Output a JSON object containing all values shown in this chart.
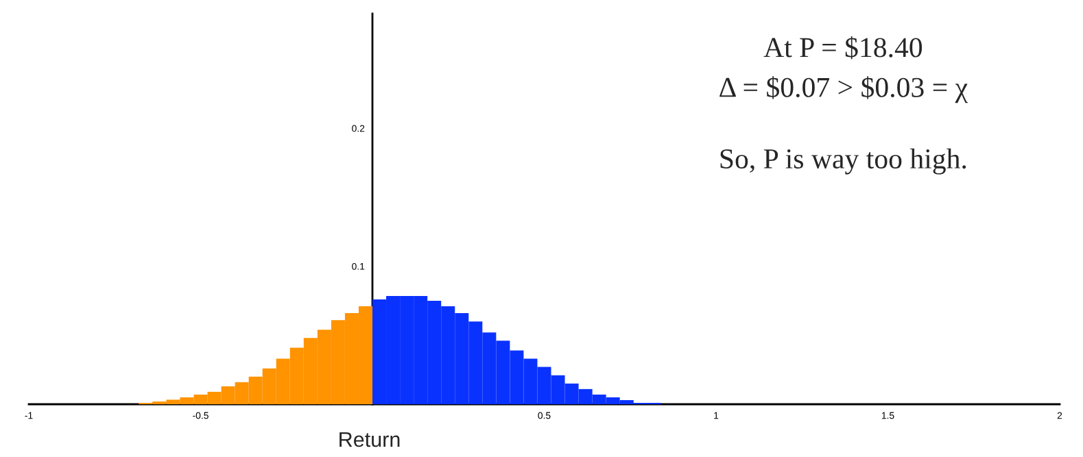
{
  "chart_data": {
    "type": "histogram",
    "bins": [
      -0.68,
      -0.64,
      -0.6,
      -0.56,
      -0.52,
      -0.48,
      -0.44,
      -0.4,
      -0.36,
      -0.32,
      -0.28,
      -0.24,
      -0.2,
      -0.16,
      -0.12,
      -0.08,
      -0.04,
      0,
      0.04,
      0.08,
      0.12,
      0.16,
      0.2,
      0.24,
      0.28,
      0.32,
      0.36,
      0.4,
      0.44,
      0.48,
      0.52,
      0.56,
      0.6,
      0.64,
      0.68,
      0.72,
      0.76,
      0.8,
      0.84
    ],
    "values": [
      0.001,
      0.002,
      0.0033,
      0.005,
      0.007,
      0.009,
      0.013,
      0.016,
      0.02,
      0.026,
      0.033,
      0.041,
      0.048,
      0.054,
      0.061,
      0.066,
      0.071,
      0.076,
      0.0785,
      0.0785,
      0.0785,
      0.075,
      0.071,
      0.066,
      0.06,
      0.052,
      0.046,
      0.039,
      0.033,
      0.027,
      0.021,
      0.015,
      0.011,
      0.007,
      0.005,
      0.003,
      0.001,
      0.001
    ],
    "colors": [
      "#ff9300",
      "#ff9300",
      "#ff9300",
      "#ff9300",
      "#ff9300",
      "#ff9300",
      "#ff9300",
      "#ff9300",
      "#ff9300",
      "#ff9300",
      "#ff9300",
      "#ff9300",
      "#ff9300",
      "#ff9300",
      "#ff9300",
      "#ff9300",
      "#ff9300",
      "#0a32ff",
      "#0a32ff",
      "#0a32ff",
      "#0a32ff",
      "#0a32ff",
      "#0a32ff",
      "#0a32ff",
      "#0a32ff",
      "#0a32ff",
      "#0a32ff",
      "#0a32ff",
      "#0a32ff",
      "#0a32ff",
      "#0a32ff",
      "#0a32ff",
      "#0a32ff",
      "#0a32ff",
      "#0a32ff",
      "#0a32ff",
      "#0a32ff",
      "#0a32ff"
    ],
    "xlim": [
      -1,
      2
    ],
    "ylim": [
      0,
      0.283
    ],
    "xticks": [
      -1,
      -0.5,
      0.5,
      1,
      1.5,
      2
    ],
    "yticks": [
      0.1,
      0.2
    ],
    "xlabel": "Return",
    "annotations": [
      "At P = $18.40",
      "Δ = $0.07 > $0.03 = χ",
      "So, P is way too high."
    ]
  }
}
